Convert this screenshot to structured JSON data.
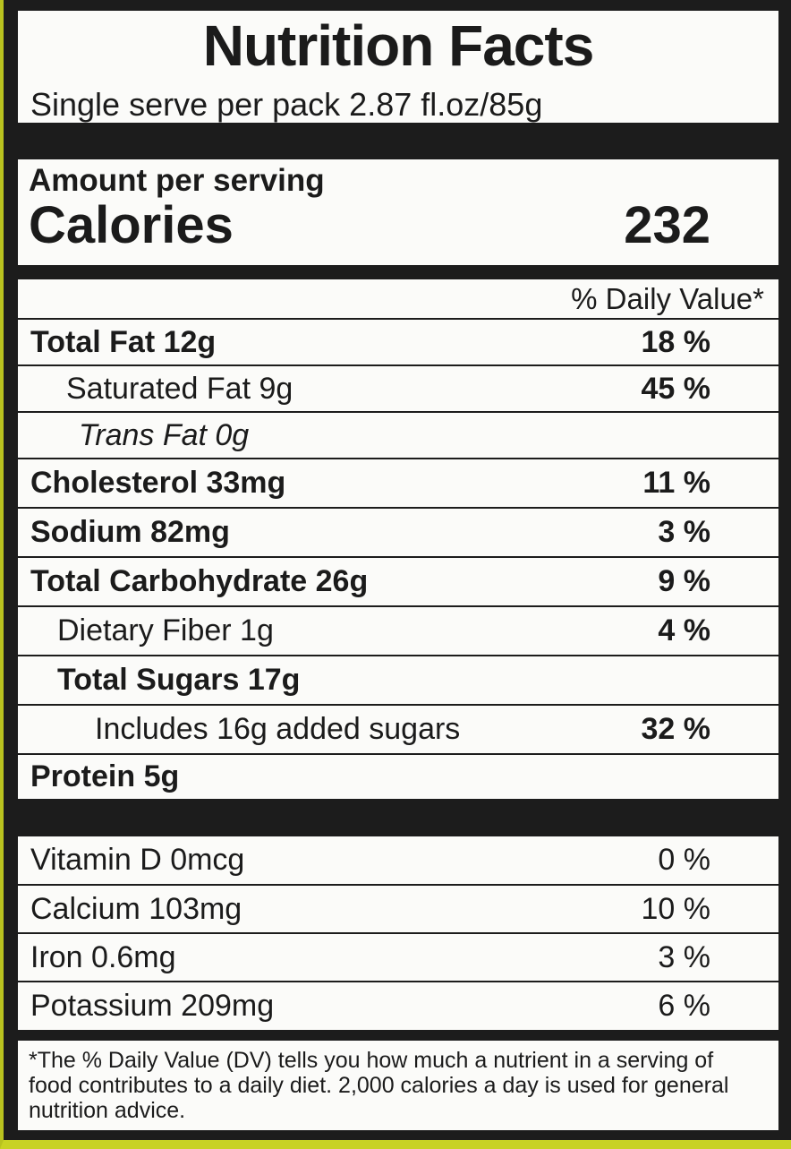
{
  "header": {
    "title": "Nutrition Facts",
    "serving": "Single serve per pack 2.87 fl.oz/85g"
  },
  "calories": {
    "amount_label": "Amount per serving",
    "label": "Calories",
    "value": "232"
  },
  "daily_value_header": "% Daily Value*",
  "nutrients": [
    {
      "name": "Total Fat 12g",
      "dv": "18 %"
    },
    {
      "name": "Saturated Fat 9g",
      "dv": "45 %"
    },
    {
      "name": "Trans Fat 0g",
      "dv": ""
    },
    {
      "name": "Cholesterol 33mg",
      "dv": "11 %"
    },
    {
      "name": "Sodium 82mg",
      "dv": "3 %"
    },
    {
      "name": "Total Carbohydrate 26g",
      "dv": "9 %"
    },
    {
      "name": "Dietary Fiber 1g",
      "dv": "4 %"
    },
    {
      "name": "Total Sugars 17g",
      "dv": ""
    },
    {
      "name": "Includes 16g added sugars",
      "dv": "32 %"
    },
    {
      "name": "Protein 5g",
      "dv": ""
    }
  ],
  "vitamins": [
    {
      "name": "Vitamin D 0mcg",
      "dv": "0 %"
    },
    {
      "name": "Calcium 103mg",
      "dv": "10 %"
    },
    {
      "name": "Iron 0.6mg",
      "dv": "3 %"
    },
    {
      "name": "Potassium 209mg",
      "dv": "6 %"
    }
  ],
  "footnote": "*The % Daily Value (DV) tells you how much a nutrient in a serving of food contributes to a daily diet. 2,000 calories a day is used for general nutrition advice."
}
